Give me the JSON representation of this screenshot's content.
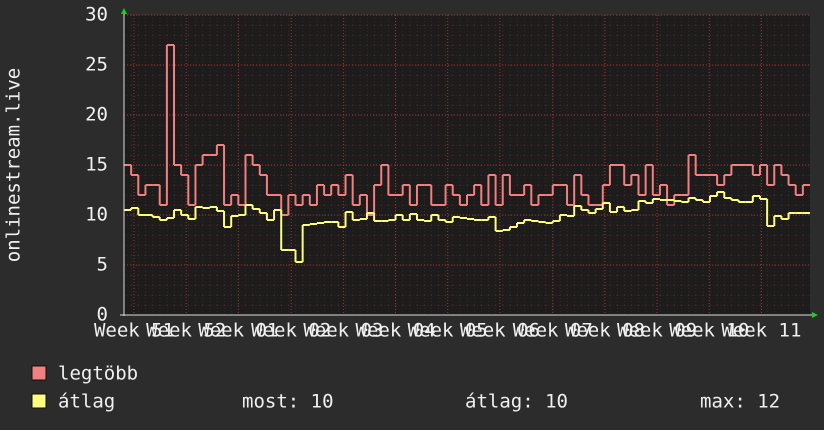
{
  "chart_data": {
    "type": "step-line",
    "ylabel": "onlinestream.live",
    "xlim": [
      0,
      96
    ],
    "xticks": [
      {
        "value": 1.4,
        "label": "Week 51"
      },
      {
        "value": 8.7,
        "label": "Week 52"
      },
      {
        "value": 16,
        "label": "Week 01"
      },
      {
        "value": 23.4,
        "label": "Week 02"
      },
      {
        "value": 30.7,
        "label": "Week 03"
      },
      {
        "value": 38,
        "label": "Week 04"
      },
      {
        "value": 45.3,
        "label": "Week 05"
      },
      {
        "value": 52.6,
        "label": "Week 06"
      },
      {
        "value": 60,
        "label": "Week 07"
      },
      {
        "value": 67.3,
        "label": "Week 08"
      },
      {
        "value": 74.6,
        "label": "Week 09"
      },
      {
        "value": 81.9,
        "label": "Week 10"
      },
      {
        "value": 89.2,
        "label": "Week 11"
      }
    ],
    "ylim": [
      0,
      30
    ],
    "yticks": [
      0,
      5,
      10,
      15,
      20,
      25,
      30
    ],
    "grid": true,
    "series": [
      {
        "name": "legtöbb",
        "color": "#f47f7f",
        "values": [
          15,
          14,
          12,
          13,
          13,
          11,
          27,
          15,
          14,
          11,
          15,
          16,
          16,
          17,
          11,
          12,
          11,
          16,
          15,
          14,
          12,
          12,
          10,
          12,
          11,
          12,
          11,
          13,
          12,
          13,
          12,
          14,
          11,
          12,
          10,
          13,
          15,
          12,
          12,
          13,
          11,
          13,
          13,
          11,
          11,
          13,
          12,
          11,
          12,
          13,
          11,
          14,
          11,
          14,
          12,
          12,
          13,
          11,
          12,
          12,
          13,
          13,
          11,
          14,
          12,
          11,
          11,
          13,
          15,
          15,
          13,
          14,
          12,
          15,
          12,
          13,
          11,
          12,
          12,
          16,
          14,
          14,
          14,
          13,
          14,
          15,
          15,
          15,
          14,
          15,
          13,
          15,
          14,
          13,
          12,
          13
        ]
      },
      {
        "name": "átlag",
        "color": "#fdfd7f",
        "values": [
          10.5,
          10.7,
          10,
          10,
          9.8,
          9.5,
          9.7,
          10.5,
          10,
          9.6,
          10.8,
          10.7,
          10.8,
          10.4,
          8.8,
          9.9,
          10,
          11,
          10.6,
          10.2,
          9.5,
          10.5,
          6.5,
          6.5,
          5.3,
          9,
          9.1,
          9.2,
          9.3,
          9.3,
          8.8,
          10.3,
          9.5,
          9.6,
          10.2,
          9.4,
          9.4,
          9.5,
          10,
          9.5,
          10.1,
          9.5,
          9.4,
          10,
          9.5,
          9.3,
          9.8,
          9.7,
          9.6,
          9.5,
          9.5,
          9.8,
          8.4,
          8.5,
          8.8,
          9.2,
          9.5,
          9.4,
          9.3,
          9.2,
          9.4,
          10,
          9.9,
          10.9,
          10.5,
          10.2,
          10.6,
          11.2,
          10.3,
          10.8,
          10.4,
          10.5,
          11.4,
          11.2,
          11.6,
          11.5,
          11.5,
          11.4,
          11.3,
          11.7,
          11.5,
          11.3,
          11.9,
          12.3,
          11.7,
          11.5,
          11.3,
          11.3,
          11.9,
          11.6,
          8.9,
          9.9,
          9.6,
          10.2,
          10.2,
          10.2
        ]
      }
    ],
    "stats": [
      "most: 10",
      "átlag: 10",
      "max: 12"
    ]
  }
}
